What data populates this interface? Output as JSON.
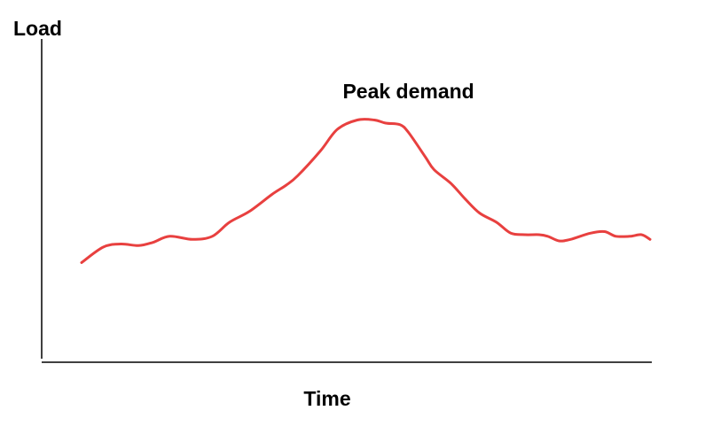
{
  "chart_data": {
    "type": "line",
    "title": "",
    "xlabel": "Time",
    "ylabel": "Load",
    "xlim": [
      0,
      100
    ],
    "ylim": [
      0,
      100
    ],
    "grid": false,
    "legend": "none",
    "annotations": [
      {
        "text": "Peak demand",
        "x": 57.5,
        "y": 84
      }
    ],
    "series": [
      {
        "color": "#e8403f",
        "x": [
          0,
          3.8,
          6.9,
          10,
          12.5,
          15.5,
          19.5,
          23,
          26,
          29.5,
          33.5,
          36,
          38,
          42,
          45,
          48.5,
          51.5,
          53.5,
          56,
          57.5,
          60.5,
          62,
          65,
          67.5,
          70,
          73,
          75.5,
          78,
          80.5,
          82,
          84,
          86,
          89.5,
          92,
          94,
          96.5,
          98.5,
          100
        ],
        "y": [
          31,
          36,
          37,
          36.5,
          37.5,
          39.5,
          38.5,
          39.5,
          44,
          47.5,
          53,
          56,
          59,
          67,
          74,
          77,
          77,
          76,
          75.5,
          73,
          65,
          61,
          56.5,
          51.5,
          47,
          44,
          40.5,
          40,
          40,
          39.5,
          38,
          38.5,
          40.5,
          41,
          39.5,
          39.5,
          40,
          38.5
        ]
      }
    ]
  }
}
